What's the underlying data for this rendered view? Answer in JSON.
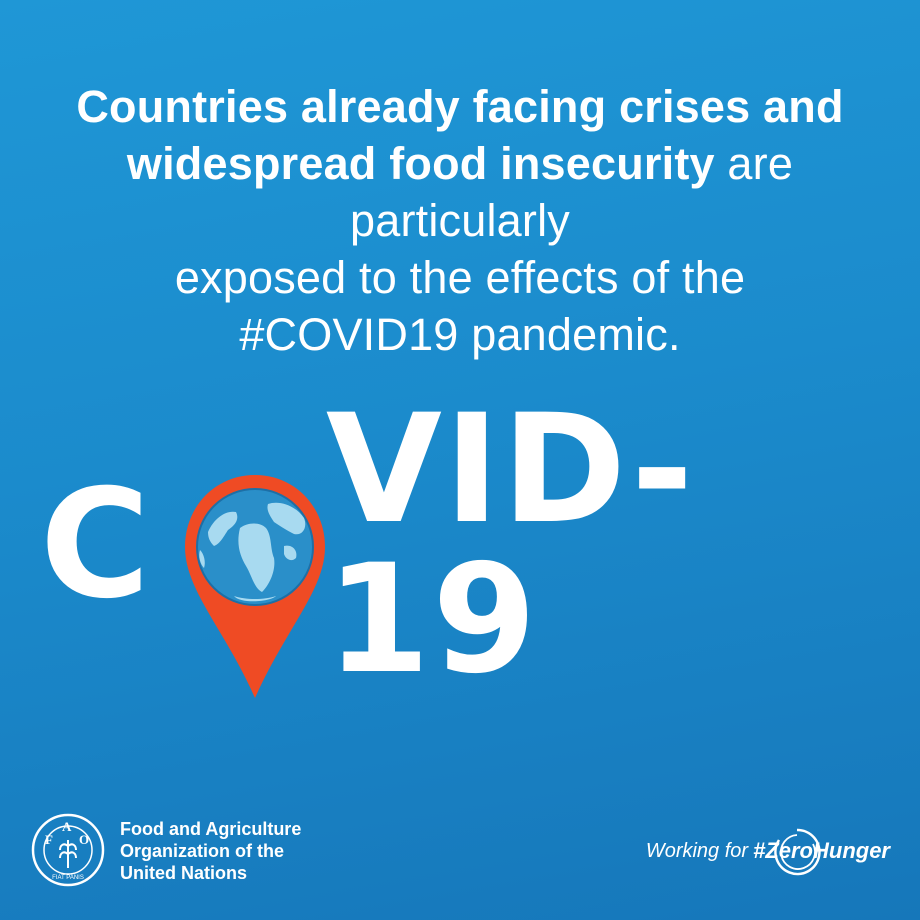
{
  "headline": {
    "bold": "Countries already facing crises and widespread food insecurity",
    "light_after_bold": " are particularly",
    "line4": "exposed to the effects of the",
    "line5": "#COVID19 pandemic."
  },
  "title": {
    "letter_c": "C",
    "rest": "VID-19",
    "pin_icon": "location-pin-globe"
  },
  "organization": {
    "line1": "Food and Agriculture",
    "line2": "Organization of the",
    "line3": "United Nations",
    "logo_letters": [
      "F",
      "A",
      "O"
    ],
    "logo_motto": "FIAT PANIS"
  },
  "campaign": {
    "working_for": "Working for",
    "hashtag": "#ZeroHunger"
  },
  "colors": {
    "background": "#1b8bcc",
    "pin": "#ef4b24",
    "globe_ocean": "#2a8fc9",
    "globe_land": "#a8daf0",
    "text": "#ffffff"
  }
}
